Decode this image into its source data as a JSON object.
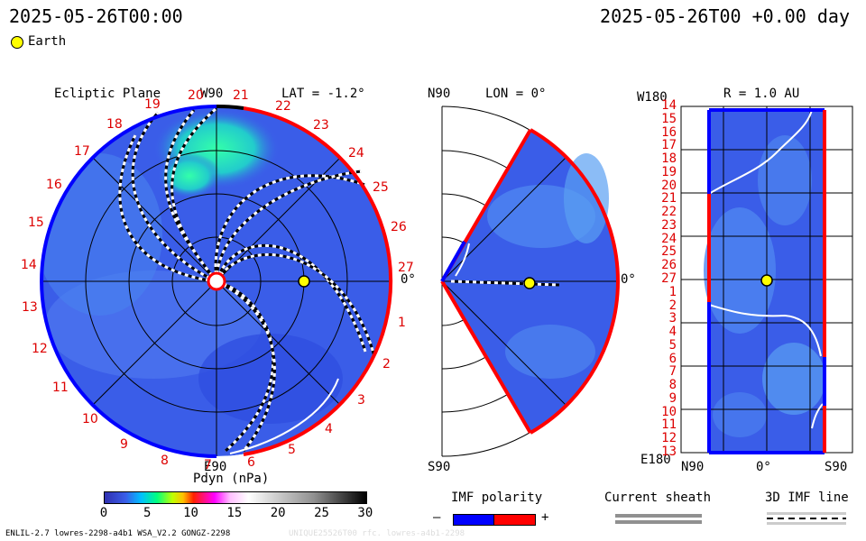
{
  "header": {
    "left_time": "2025-05-26T00:00",
    "right_time": "2025-05-26T00 +0.00 day",
    "legend_earth": "Earth"
  },
  "ecliptic": {
    "title": "Ecliptic Plane",
    "top_label": "W90",
    "lat": "LAT = -1.2°",
    "right_label": "0°",
    "bottom_label": "E90",
    "carrington_numbers": [
      "1",
      "2",
      "3",
      "4",
      "5",
      "6",
      "7",
      "8",
      "9",
      "10",
      "11",
      "12",
      "13",
      "14",
      "15",
      "16",
      "17",
      "18",
      "19",
      "20",
      "21",
      "22",
      "23",
      "24",
      "25",
      "26",
      "27"
    ]
  },
  "meridional": {
    "top_label": "N90",
    "lon": "LON = 0°",
    "right_label": "0°",
    "bottom_label": "S90"
  },
  "rmap": {
    "top_left": "W180",
    "r_label": "R = 1.0 AU",
    "bottom_left": "E180",
    "x_left": "N90",
    "x_mid": "0°",
    "x_right": "S90",
    "row_labels": [
      "14",
      "15",
      "16",
      "17",
      "18",
      "19",
      "20",
      "21",
      "22",
      "23",
      "24",
      "25",
      "26",
      "27",
      "1",
      "2",
      "3",
      "4",
      "5",
      "6",
      "7",
      "8",
      "9",
      "10",
      "11",
      "12",
      "13"
    ]
  },
  "colorbar": {
    "label": "Pdyn (nPa)",
    "ticks": [
      "0",
      "5",
      "10",
      "15",
      "20",
      "25",
      "30"
    ]
  },
  "imf": {
    "label": "IMF polarity",
    "minus": "–",
    "plus": "+"
  },
  "current_sheath": {
    "label": "Current sheath"
  },
  "imf_line": {
    "label": "3D IMF line"
  },
  "footer": {
    "left": "ENLIL-2.7 lowres-2298-a4b1 WSA_V2.2 GONGZ-2298",
    "right": "UNIQUE25526T00 rfc. lowres-a4b1-2298"
  },
  "colors": {
    "background_field": "#3a5de8",
    "positive_polarity": "#ff0000",
    "negative_polarity": "#0000ff",
    "earth": "#ffff00",
    "carrington_labels": "#dd0000"
  }
}
